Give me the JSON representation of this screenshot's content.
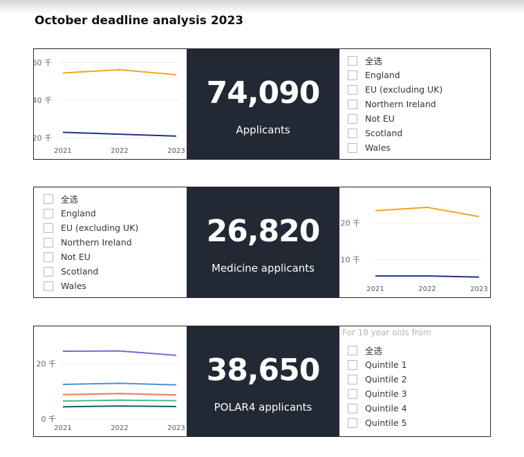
{
  "page": {
    "title": "October deadline analysis 2023"
  },
  "rows": [
    {
      "card": {
        "value": "74,090",
        "label": "Applicants"
      },
      "slicer": {
        "header": "",
        "items": [
          "全选",
          "England",
          "EU (excluding UK)",
          "Northern Ireland",
          "Not EU",
          "Scotland",
          "Wales"
        ]
      }
    },
    {
      "card": {
        "value": "26,820",
        "label": "Medicine applicants"
      },
      "slicer": {
        "header": "",
        "items": [
          "全选",
          "England",
          "EU (excluding UK)",
          "Northern Ireland",
          "Not EU",
          "Scotland",
          "Wales"
        ]
      }
    },
    {
      "card": {
        "value": "38,650",
        "label": "POLAR4 applicants"
      },
      "slicer": {
        "header": "For 18 year olds from",
        "items": [
          "全选",
          "Quintile 1",
          "Quintile 2",
          "Quintile 3",
          "Quintile 4",
          "Quintile 5"
        ]
      }
    }
  ],
  "chart_data": [
    {
      "type": "line",
      "x": [
        "2021",
        "2022",
        "2023"
      ],
      "ylim": [
        18,
        62
      ],
      "yticks": [
        20,
        40,
        60
      ],
      "ytick_labels": [
        "20 千",
        "40 千",
        "60 千"
      ],
      "grid": true,
      "series": [
        {
          "values": [
            54.5,
            56.2,
            53.5
          ],
          "color": "#f2a51a"
        },
        {
          "values": [
            23.0,
            22.0,
            21.0
          ],
          "color": "#1f2f8a"
        }
      ]
    },
    {
      "type": "line",
      "x": [
        "2021",
        "2022",
        "2023"
      ],
      "ylim": [
        4.5,
        27
      ],
      "yticks": [
        10,
        20
      ],
      "ytick_labels": [
        "10 千",
        "20 千"
      ],
      "grid": true,
      "series": [
        {
          "values": [
            23.3,
            24.2,
            21.7
          ],
          "color": "#f2a51a"
        },
        {
          "values": [
            5.6,
            5.6,
            5.3
          ],
          "color": "#1f2f8a"
        }
      ]
    },
    {
      "type": "line",
      "x": [
        "2021",
        "2022",
        "2023"
      ],
      "ylim": [
        0,
        30
      ],
      "yticks": [
        0,
        20
      ],
      "ytick_labels": [
        "0 千",
        "20 千"
      ],
      "grid": true,
      "series": [
        {
          "values": [
            24.5,
            24.6,
            23.0
          ],
          "color": "#8266cc"
        },
        {
          "values": [
            12.5,
            12.9,
            12.3
          ],
          "color": "#4a90d9"
        },
        {
          "values": [
            8.8,
            9.2,
            8.7
          ],
          "color": "#e8765a"
        },
        {
          "values": [
            6.5,
            6.8,
            6.6
          ],
          "color": "#4fb882"
        },
        {
          "values": [
            4.4,
            4.7,
            4.5
          ],
          "color": "#0f5e5e"
        }
      ]
    }
  ]
}
